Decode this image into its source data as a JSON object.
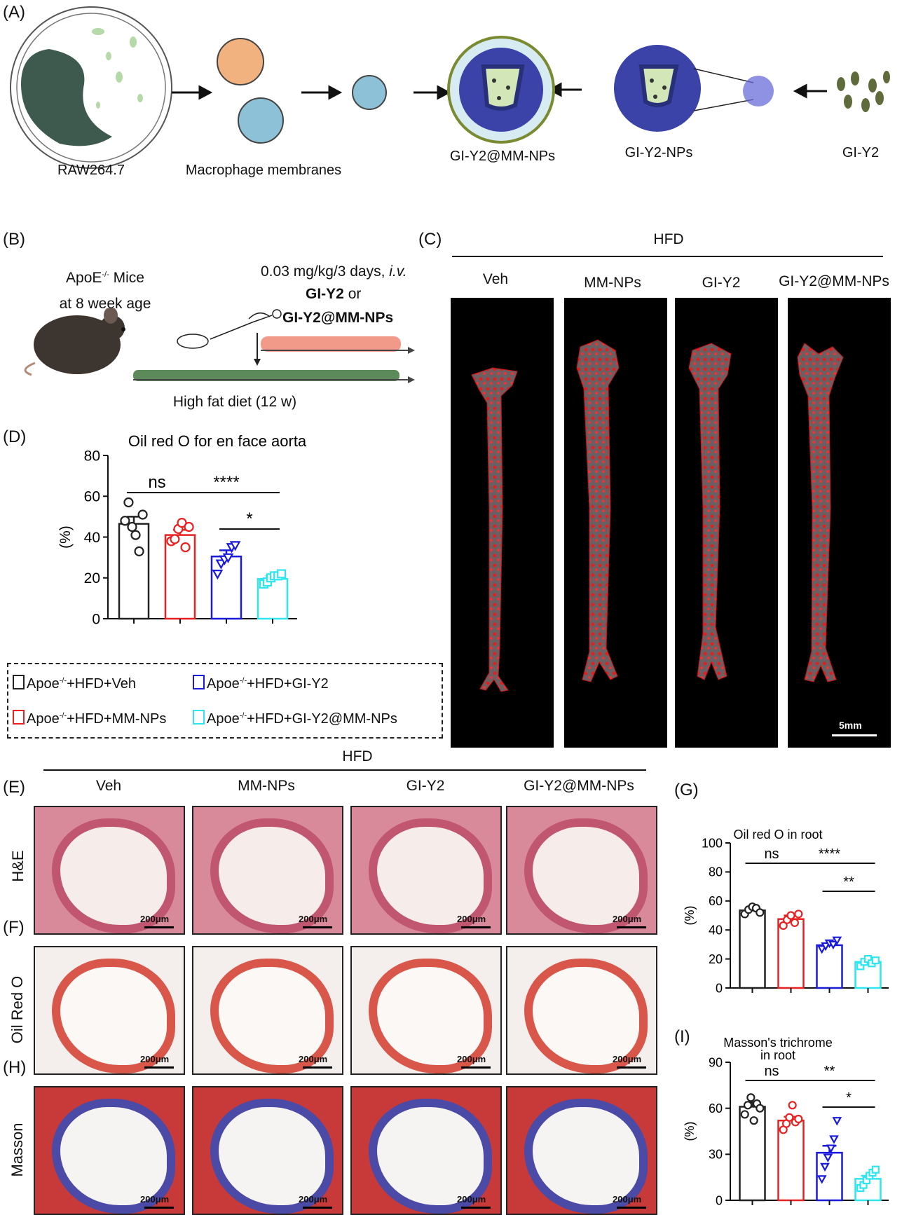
{
  "panels": {
    "A": "(A)",
    "B": "(B)",
    "C": "(C)",
    "D": "(D)",
    "E": "(E)",
    "F": "(F)",
    "G": "(G)",
    "H": "(H)",
    "I": "(I)"
  },
  "schematic": {
    "raw_label": "RAW264.7",
    "membranes_label": "Macrophage membranes",
    "mmnps_label": "GI-Y2@MM-NPs",
    "nps_label": "GI-Y2-NPs",
    "drug_label": "GI-Y2"
  },
  "protocol": {
    "mice_line1": "ApoE",
    "mice_sup": "-/-",
    "mice_line1b": " Mice",
    "mice_line2": "at 8 week age",
    "dose": "0.03 mg/kg/3 days, ",
    "route": "i.v.",
    "drug1": "GI-Y2",
    "or": " or",
    "drug2": "GI-Y2@MM-NPs",
    "diet": "High fat diet (12 w)"
  },
  "panelC": {
    "header": "HFD",
    "groups": [
      "Veh",
      "MM-NPs",
      "GI-Y2",
      "GI-Y2@MM-NPs"
    ],
    "scale": "5mm"
  },
  "legend": [
    {
      "prefix": "Apoe",
      "sup": "-/-",
      "suffix": "+HFD+Veh",
      "color": "#222222"
    },
    {
      "prefix": "Apoe",
      "sup": "-/-",
      "suffix": "+HFD+GI-Y2",
      "color": "#1a1adb"
    },
    {
      "prefix": "Apoe",
      "sup": "-/-",
      "suffix": "+HFD+MM-NPs",
      "color": "#e82020"
    },
    {
      "prefix": "Apoe",
      "sup": "-/-",
      "suffix": "+HFD+GI-Y2@MM-NPs",
      "color": "#2de6f0"
    }
  ],
  "histology": {
    "header": "HFD",
    "groups": [
      "Veh",
      "MM-NPs",
      "GI-Y2",
      "GI-Y2@MM-NPs"
    ],
    "rows": [
      "H&E",
      "Oil Red O",
      "Masson"
    ],
    "scale": "200μm"
  },
  "colors": {
    "veh": "#222222",
    "mmnps": "#e82020",
    "giy2": "#1a1adb",
    "giy2mm": "#2de6f0"
  },
  "chart_data": [
    {
      "id": "D",
      "type": "bar",
      "title": "Oil red O for en face aorta",
      "ylabel": "(%)",
      "ylim": [
        0,
        80
      ],
      "yticks": [
        "0",
        "20",
        "40",
        "60",
        "80"
      ],
      "values": [
        46.5,
        41,
        30.5,
        19.5
      ],
      "errors": [
        3.5,
        2.5,
        3,
        1.5
      ],
      "points": [
        [
          48,
          57,
          45,
          41,
          33,
          51
        ],
        [
          38,
          39,
          44,
          47,
          35,
          45
        ],
        [
          22,
          27,
          29,
          30,
          35,
          36
        ],
        [
          17,
          18,
          20,
          21,
          21,
          22
        ]
      ],
      "markers": [
        "circle",
        "circle",
        "triangle",
        "square"
      ],
      "annotations": [
        {
          "text": "ns",
          "from": 0,
          "to": 1,
          "level": 1
        },
        {
          "text": "****",
          "from": 1,
          "to": 3,
          "level": 1
        },
        {
          "text": "*",
          "from": 2,
          "to": 3,
          "level": 0
        }
      ]
    },
    {
      "id": "G",
      "type": "bar",
      "title": "Oil red O in root",
      "ylabel": "(%)",
      "ylim": [
        0,
        100
      ],
      "yticks": [
        "0",
        "20",
        "40",
        "60",
        "80",
        "100"
      ],
      "values": [
        53.5,
        47.5,
        29.5,
        18
      ],
      "errors": [
        2,
        2.5,
        1,
        1.5
      ],
      "points": [
        [
          51,
          54,
          56,
          55,
          52
        ],
        [
          43,
          47,
          50,
          45,
          51
        ],
        [
          27,
          29,
          31,
          30,
          33
        ],
        [
          15,
          18,
          20,
          17,
          19
        ]
      ],
      "markers": [
        "circle",
        "circle",
        "triangle",
        "square"
      ],
      "annotations": [
        {
          "text": "ns",
          "from": 0,
          "to": 1,
          "level": 1
        },
        {
          "text": "****",
          "from": 1,
          "to": 3,
          "level": 1
        },
        {
          "text": "**",
          "from": 2,
          "to": 3,
          "level": 0
        }
      ]
    },
    {
      "id": "I",
      "type": "bar",
      "title": "Masson's trichrome",
      "subtitle": "in root",
      "ylabel": "(%)",
      "ylim": [
        0,
        90
      ],
      "yticks": [
        "0",
        "30",
        "60",
        "90"
      ],
      "values": [
        61,
        52,
        31,
        14
      ],
      "errors": [
        3,
        2.5,
        4.5,
        2
      ],
      "points": [
        [
          56,
          62,
          67,
          52,
          63,
          60
        ],
        [
          46,
          50,
          54,
          62,
          51,
          53
        ],
        [
          14,
          22,
          28,
          34,
          40,
          52
        ],
        [
          8,
          10,
          13,
          16,
          18,
          20
        ]
      ],
      "markers": [
        "circle",
        "circle",
        "triangle",
        "square"
      ],
      "annotations": [
        {
          "text": "ns",
          "from": 0,
          "to": 1,
          "level": 1
        },
        {
          "text": "**",
          "from": 1,
          "to": 3,
          "level": 1
        },
        {
          "text": "*",
          "from": 2,
          "to": 3,
          "level": 0
        }
      ]
    }
  ]
}
